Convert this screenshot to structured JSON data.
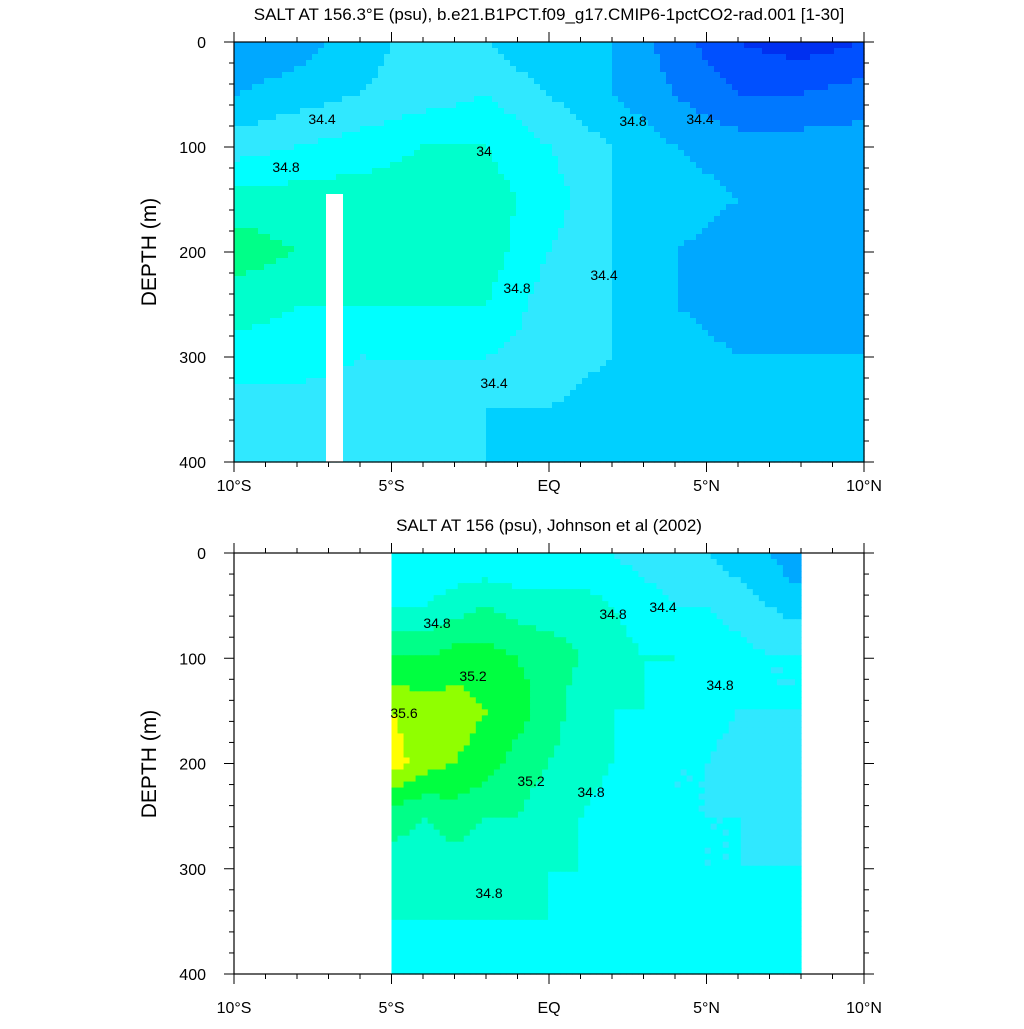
{
  "chart_data": [
    {
      "type": "heatmap",
      "title": "SALT AT 156.3°E (psu), b.e21.B1PCT.f09_g17.CMIP6-1pctCO2-rad.001 [1-30]",
      "variable": "SALT",
      "units": "psu",
      "ylabel": "DEPTH (m)",
      "xlabel": "",
      "xlim": [
        -10,
        10
      ],
      "ylim": [
        400,
        0
      ],
      "y_reversed": true,
      "x_tick_values": [
        -10,
        -5,
        0,
        5,
        10
      ],
      "x_tick_labels": [
        "10°S",
        "5°S",
        "EQ",
        "5°N",
        "10°N"
      ],
      "y_tick_values": [
        0,
        100,
        200,
        300,
        400
      ],
      "y_tick_labels": [
        "0",
        "100",
        "200",
        "300",
        "400"
      ],
      "data_extent_lat": [
        -10,
        10
      ],
      "contour_interval": 0.2,
      "contour_labels": [
        "34.4",
        "34.8",
        "34.4",
        "34",
        "34.8",
        "34.8",
        "34.4",
        "34.4"
      ],
      "lat": [
        -10,
        -8,
        -6,
        -4,
        -2,
        0,
        2,
        4,
        6,
        8,
        10
      ],
      "depth": [
        0,
        50,
        100,
        150,
        200,
        250,
        300,
        350,
        400
      ],
      "values": [
        [
          34.0,
          34.1,
          34.3,
          34.5,
          34.4,
          34.2,
          34.2,
          33.9,
          33.6,
          33.5,
          33.6
        ],
        [
          34.2,
          34.3,
          34.4,
          34.5,
          34.6,
          34.4,
          34.2,
          34.0,
          33.8,
          33.8,
          33.9
        ],
        [
          34.5,
          34.6,
          34.7,
          34.8,
          34.8,
          34.6,
          34.4,
          34.2,
          34.1,
          34.1,
          34.1
        ],
        [
          34.9,
          34.9,
          34.9,
          34.9,
          34.9,
          34.7,
          34.4,
          34.3,
          34.2,
          34.2,
          34.2
        ],
        [
          35.1,
          35.0,
          35.0,
          35.0,
          34.9,
          34.6,
          34.4,
          34.2,
          34.1,
          34.1,
          34.1
        ],
        [
          34.9,
          34.8,
          34.8,
          34.8,
          34.8,
          34.5,
          34.4,
          34.2,
          34.1,
          34.1,
          34.1
        ],
        [
          34.7,
          34.7,
          34.6,
          34.6,
          34.6,
          34.5,
          34.4,
          34.3,
          34.2,
          34.2,
          34.2
        ],
        [
          34.5,
          34.5,
          34.5,
          34.5,
          34.4,
          34.4,
          34.3,
          34.3,
          34.3,
          34.3,
          34.3
        ],
        [
          34.4,
          34.5,
          34.5,
          34.4,
          34.4,
          34.3,
          34.3,
          34.3,
          34.3,
          34.3,
          34.3
        ]
      ]
    },
    {
      "type": "heatmap",
      "title": "SALT AT 156 (psu), Johnson et al (2002)",
      "variable": "SALT",
      "units": "psu",
      "ylabel": "DEPTH (m)",
      "xlabel": "",
      "xlim": [
        -10,
        10
      ],
      "ylim": [
        400,
        0
      ],
      "y_reversed": true,
      "x_tick_values": [
        -10,
        -5,
        0,
        5,
        10
      ],
      "x_tick_labels": [
        "10°S",
        "5°S",
        "EQ",
        "5°N",
        "10°N"
      ],
      "y_tick_values": [
        0,
        100,
        200,
        300,
        400
      ],
      "y_tick_labels": [
        "0",
        "100",
        "200",
        "300",
        "400"
      ],
      "data_extent_lat": [
        -5,
        8
      ],
      "contour_interval": 0.2,
      "contour_labels": [
        "34.8",
        "34.8",
        "34.4",
        "35.2",
        "34.8",
        "35.6",
        "35.2",
        "34.8",
        "34.8"
      ],
      "lat": [
        -5,
        -4,
        -3,
        -2,
        -1,
        0,
        1,
        2,
        3,
        4,
        5,
        6,
        7,
        8
      ],
      "depth": [
        0,
        50,
        100,
        150,
        200,
        250,
        300,
        350,
        400
      ],
      "values": [
        [
          34.6,
          34.6,
          34.6,
          34.6,
          34.6,
          34.6,
          34.6,
          34.6,
          34.5,
          34.5,
          34.4,
          34.3,
          34.2,
          34.0
        ],
        [
          34.8,
          34.8,
          34.9,
          35.0,
          34.9,
          34.9,
          34.9,
          34.8,
          34.7,
          34.6,
          34.6,
          34.5,
          34.4,
          34.3
        ],
        [
          35.2,
          35.2,
          35.3,
          35.3,
          35.2,
          35.1,
          35.0,
          34.9,
          34.8,
          34.8,
          34.7,
          34.7,
          34.6,
          34.6
        ],
        [
          35.6,
          35.5,
          35.5,
          35.4,
          35.3,
          35.1,
          34.9,
          34.8,
          34.8,
          34.7,
          34.7,
          34.6,
          34.6,
          34.6
        ],
        [
          35.7,
          35.5,
          35.4,
          35.3,
          35.1,
          35.0,
          34.9,
          34.8,
          34.7,
          34.6,
          34.6,
          34.5,
          34.5,
          34.5
        ],
        [
          35.1,
          35.0,
          35.1,
          35.0,
          35.0,
          34.9,
          34.8,
          34.7,
          34.6,
          34.6,
          34.6,
          34.6,
          34.5,
          34.5
        ],
        [
          34.9,
          34.9,
          34.9,
          34.9,
          34.9,
          34.8,
          34.8,
          34.7,
          34.7,
          34.6,
          34.6,
          34.6,
          34.6,
          34.6
        ],
        [
          34.8,
          34.8,
          34.8,
          34.8,
          34.8,
          34.8,
          34.7,
          34.7,
          34.7,
          34.7,
          34.7,
          34.7,
          34.7,
          34.7
        ],
        [
          34.7,
          34.7,
          34.7,
          34.7,
          34.7,
          34.7,
          34.7,
          34.7,
          34.7,
          34.7,
          34.7,
          34.7,
          34.7,
          34.7
        ]
      ]
    }
  ],
  "colorscale": {
    "levels": [
      33.6,
      33.8,
      34.0,
      34.2,
      34.4,
      34.6,
      34.8,
      35.0,
      35.2,
      35.4,
      35.6
    ],
    "colors": [
      "#0030f0",
      "#0050ff",
      "#0078ff",
      "#00a8ff",
      "#00d0ff",
      "#30e8ff",
      "#00ffff",
      "#00ffcc",
      "#00ff88",
      "#00ff40",
      "#90ff00",
      "#ffff00"
    ]
  }
}
